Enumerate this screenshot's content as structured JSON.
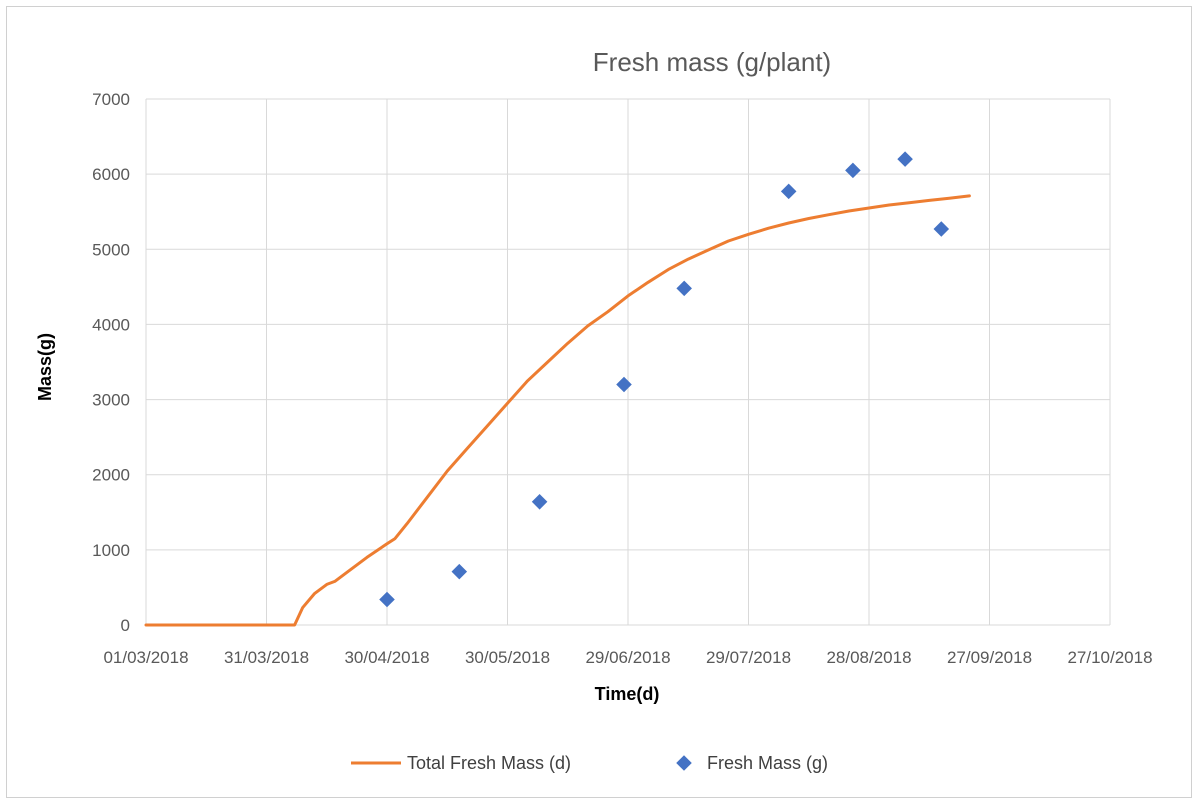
{
  "chart_data": {
    "type": "scatter",
    "title": "Fresh mass (g/plant)",
    "xlabel": "Time(d)",
    "ylabel": "Mass(g)",
    "x_axis_type": "date",
    "xlim": [
      "01/03/2018",
      "27/10/2018"
    ],
    "ylim": [
      0,
      7000
    ],
    "x_ticks": [
      "01/03/2018",
      "31/03/2018",
      "30/04/2018",
      "30/05/2018",
      "29/06/2018",
      "29/07/2018",
      "28/08/2018",
      "27/09/2018",
      "27/10/2018"
    ],
    "y_ticks": [
      0,
      1000,
      2000,
      3000,
      4000,
      5000,
      6000,
      7000
    ],
    "grid": true,
    "legend_position": "bottom",
    "series": [
      {
        "name": "Total Fresh Mass (d)",
        "kind": "line",
        "color": "#ED7D31",
        "points": [
          [
            "01/03/2018",
            0
          ],
          [
            "07/04/2018",
            0
          ],
          [
            "09/04/2018",
            230
          ],
          [
            "12/04/2018",
            420
          ],
          [
            "15/04/2018",
            540
          ],
          [
            "17/04/2018",
            580
          ],
          [
            "20/04/2018",
            700
          ],
          [
            "25/04/2018",
            900
          ],
          [
            "30/04/2018",
            1080
          ],
          [
            "02/05/2018",
            1150
          ],
          [
            "05/05/2018",
            1350
          ],
          [
            "10/05/2018",
            1700
          ],
          [
            "15/05/2018",
            2050
          ],
          [
            "20/05/2018",
            2350
          ],
          [
            "25/05/2018",
            2650
          ],
          [
            "30/05/2018",
            2950
          ],
          [
            "04/06/2018",
            3250
          ],
          [
            "09/06/2018",
            3500
          ],
          [
            "14/06/2018",
            3750
          ],
          [
            "19/06/2018",
            3980
          ],
          [
            "24/06/2018",
            4170
          ],
          [
            "29/06/2018",
            4380
          ],
          [
            "04/07/2018",
            4560
          ],
          [
            "09/07/2018",
            4730
          ],
          [
            "14/07/2018",
            4870
          ],
          [
            "19/07/2018",
            4990
          ],
          [
            "24/07/2018",
            5110
          ],
          [
            "29/07/2018",
            5200
          ],
          [
            "03/08/2018",
            5280
          ],
          [
            "08/08/2018",
            5350
          ],
          [
            "13/08/2018",
            5410
          ],
          [
            "18/08/2018",
            5460
          ],
          [
            "23/08/2018",
            5510
          ],
          [
            "28/08/2018",
            5550
          ],
          [
            "02/09/2018",
            5590
          ],
          [
            "07/09/2018",
            5620
          ],
          [
            "12/09/2018",
            5650
          ],
          [
            "17/09/2018",
            5680
          ],
          [
            "22/09/2018",
            5710
          ]
        ]
      },
      {
        "name": "Fresh Mass (g)",
        "kind": "scatter",
        "color": "#4472C4",
        "points": [
          [
            "30/04/2018",
            340
          ],
          [
            "18/05/2018",
            710
          ],
          [
            "07/06/2018",
            1640
          ],
          [
            "28/06/2018",
            3200
          ],
          [
            "13/07/2018",
            4480
          ],
          [
            "08/08/2018",
            5770
          ],
          [
            "24/08/2018",
            6050
          ],
          [
            "06/09/2018",
            6200
          ],
          [
            "15/09/2018",
            5270
          ]
        ]
      }
    ]
  }
}
